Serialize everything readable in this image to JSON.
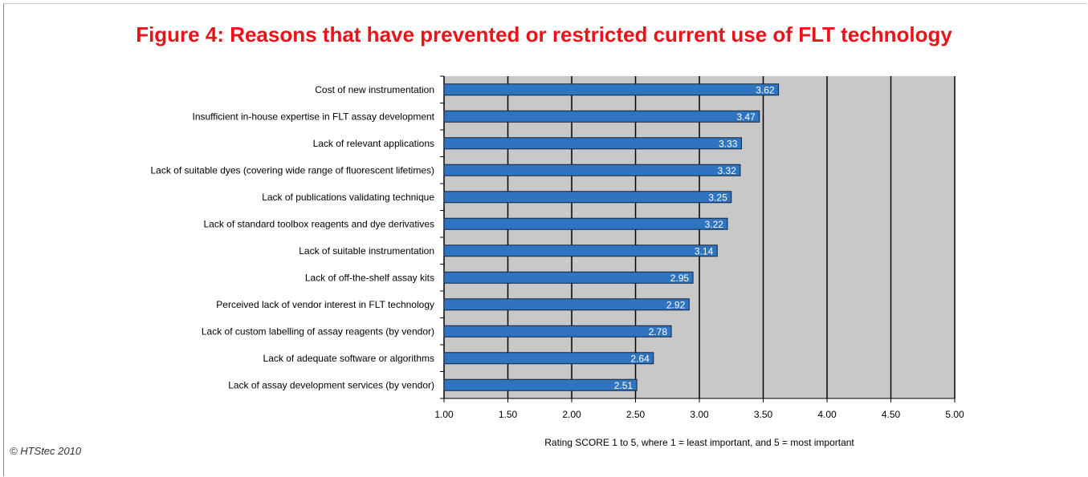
{
  "figure": {
    "title": "Figure 4: Reasons that have prevented or restricted current use of FLT technology",
    "copyright": "© HTStec 2010"
  },
  "colors": {
    "title": "#e8141a",
    "bar": "#2f74c0",
    "bar_border": "#10243e",
    "plot_background": "#c8c8c8",
    "gridline": "#000000"
  },
  "chart_data": {
    "type": "bar",
    "orientation": "horizontal",
    "categories": [
      "Cost of new instrumentation",
      "Insufficient in-house expertise in FLT assay development",
      "Lack of relevant applications",
      "Lack of suitable dyes (covering wide range of fluorescent lifetimes)",
      "Lack of publications validating technique",
      "Lack of standard toolbox reagents and dye derivatives",
      "Lack of suitable instrumentation",
      "Lack of off-the-shelf assay kits",
      "Perceived lack of vendor interest in FLT technology",
      "Lack of custom labelling of assay reagents (by vendor)",
      "Lack of adequate software or algorithms",
      "Lack of assay development services (by vendor)"
    ],
    "values": [
      3.62,
      3.47,
      3.33,
      3.32,
      3.25,
      3.22,
      3.14,
      2.95,
      2.92,
      2.78,
      2.64,
      2.51
    ],
    "value_labels": [
      "3.62",
      "3.47",
      "3.33",
      "3.32",
      "3.25",
      "3.22",
      "3.14",
      "2.95",
      "2.92",
      "2.78",
      "2.64",
      "2.51"
    ],
    "xlabel": "Rating SCORE 1 to 5, where 1 =  least important, and 5 = most important",
    "xlim": [
      1.0,
      5.0
    ],
    "xticks": [
      1.0,
      1.5,
      2.0,
      2.5,
      3.0,
      3.5,
      4.0,
      4.5,
      5.0
    ],
    "xtick_labels": [
      "1.00",
      "1.50",
      "2.00",
      "2.50",
      "3.00",
      "3.50",
      "4.00",
      "4.50",
      "5.00"
    ],
    "grid": true,
    "legend": "none"
  }
}
